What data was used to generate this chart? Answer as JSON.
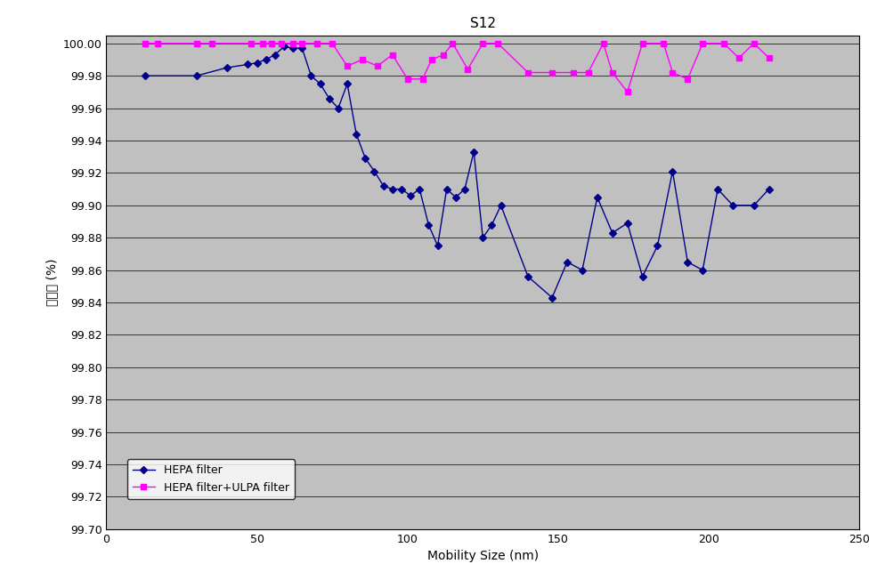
{
  "title": "S12",
  "xlabel": "Mobility Size (nm)",
  "ylabel": "포집율 (%)",
  "xlim": [
    0,
    250
  ],
  "ylim": [
    99.7,
    100.005
  ],
  "yticks": [
    99.7,
    99.72,
    99.74,
    99.76,
    99.78,
    99.8,
    99.82,
    99.84,
    99.86,
    99.88,
    99.9,
    99.92,
    99.94,
    99.96,
    99.98,
    100.0
  ],
  "xticks": [
    0,
    50,
    100,
    150,
    200,
    250
  ],
  "hepa_x": [
    13,
    30,
    40,
    47,
    50,
    53,
    56,
    59,
    62,
    65,
    68,
    71,
    74,
    77,
    80,
    83,
    86,
    89,
    92,
    95,
    98,
    101,
    104,
    107,
    110,
    113,
    116,
    119,
    122,
    125,
    128,
    131,
    140,
    148,
    153,
    158,
    163,
    168,
    173,
    178,
    183,
    188,
    193,
    198,
    203,
    208,
    215,
    220
  ],
  "hepa_y": [
    99.98,
    99.98,
    99.985,
    99.987,
    99.988,
    99.99,
    99.993,
    99.998,
    99.997,
    99.997,
    99.98,
    99.975,
    99.966,
    99.96,
    99.975,
    99.944,
    99.929,
    99.921,
    99.912,
    99.91,
    99.91,
    99.906,
    99.91,
    99.888,
    99.875,
    99.91,
    99.905,
    99.91,
    99.933,
    99.88,
    99.888,
    99.9,
    99.856,
    99.843,
    99.865,
    99.86,
    99.905,
    99.883,
    99.889,
    99.856,
    99.875,
    99.921,
    99.865,
    99.86,
    99.91,
    99.9,
    99.9,
    99.91
  ],
  "ulpa_x": [
    13,
    17,
    30,
    35,
    48,
    52,
    55,
    58,
    62,
    65,
    70,
    75,
    80,
    85,
    90,
    95,
    100,
    105,
    108,
    112,
    115,
    120,
    125,
    130,
    140,
    148,
    155,
    160,
    165,
    168,
    173,
    178,
    185,
    188,
    193,
    198,
    205,
    210,
    215,
    220
  ],
  "ulpa_y": [
    100.0,
    100.0,
    100.0,
    100.0,
    100.0,
    100.0,
    100.0,
    100.0,
    100.0,
    100.0,
    100.0,
    100.0,
    99.986,
    99.99,
    99.986,
    99.993,
    99.978,
    99.978,
    99.99,
    99.993,
    100.0,
    99.984,
    100.0,
    100.0,
    99.982,
    99.982,
    99.982,
    99.982,
    100.0,
    99.982,
    99.97,
    100.0,
    100.0,
    99.982,
    99.978,
    100.0,
    100.0,
    99.991,
    100.0,
    99.991
  ],
  "hepa_color": "#00008B",
  "ulpa_color": "#FF00FF",
  "plot_bg_color": "#C0C0C0",
  "fig_bg_color": "#FFFFFF",
  "grid_color": "#000000",
  "title_fontsize": 11,
  "label_fontsize": 10,
  "tick_fontsize": 9,
  "legend_fontsize": 9
}
